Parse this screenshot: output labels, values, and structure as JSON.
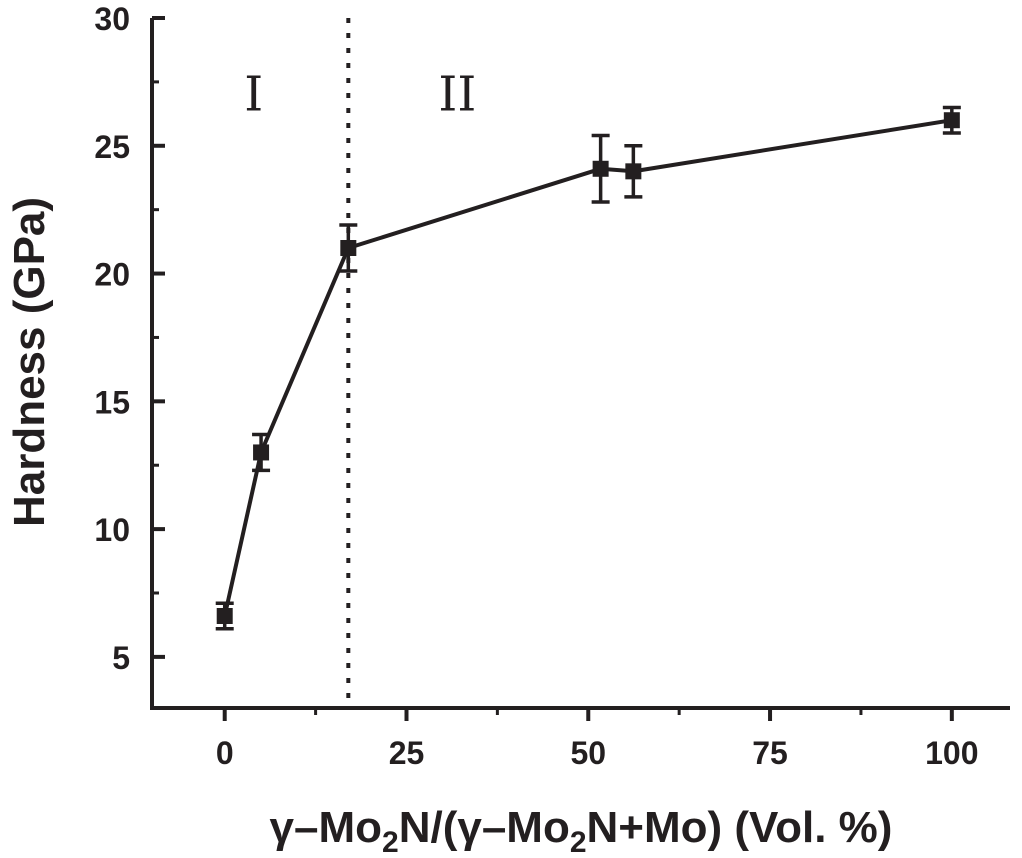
{
  "chart_data": {
    "type": "line",
    "title": "",
    "xlabel": {
      "parts": [
        {
          "text": "γ–Mo",
          "sub": false
        },
        {
          "text": "2",
          "sub": true
        },
        {
          "text": "N/(γ–Mo",
          "sub": false
        },
        {
          "text": "2",
          "sub": true
        },
        {
          "text": "N+Mo) (Vol. %)",
          "sub": false
        }
      ]
    },
    "ylabel": "Hardness (GPa)",
    "xlim": [
      -10,
      108
    ],
    "ylim": [
      3,
      30
    ],
    "x_ticks": [
      0,
      25,
      50,
      75,
      100
    ],
    "x_minor_ticks": [
      12.5,
      37.5,
      62.5,
      87.5
    ],
    "y_ticks": [
      5,
      10,
      15,
      20,
      25,
      30
    ],
    "y_minor_ticks": [
      7.5,
      12.5,
      17.5,
      22.5,
      27.5
    ],
    "grid": false,
    "legend": "none",
    "series": [
      {
        "marker": "square",
        "color": "#231f20",
        "points": [
          {
            "x": 0,
            "y": 6.6,
            "err": 0.5
          },
          {
            "x": 5,
            "y": 13.0,
            "err": 0.7
          },
          {
            "x": 17,
            "y": 21.0,
            "err": 0.9
          },
          {
            "x": 51.7,
            "y": 24.1,
            "err": 1.3
          },
          {
            "x": 56.2,
            "y": 24.0,
            "err": 1.0
          },
          {
            "x": 100,
            "y": 26.0,
            "err": 0.5
          }
        ]
      }
    ],
    "divider": {
      "x": 17,
      "style": "dotted"
    },
    "regions": [
      {
        "label": "I",
        "x": 4,
        "y": 27
      },
      {
        "label": "II",
        "x": 32,
        "y": 27
      }
    ]
  }
}
